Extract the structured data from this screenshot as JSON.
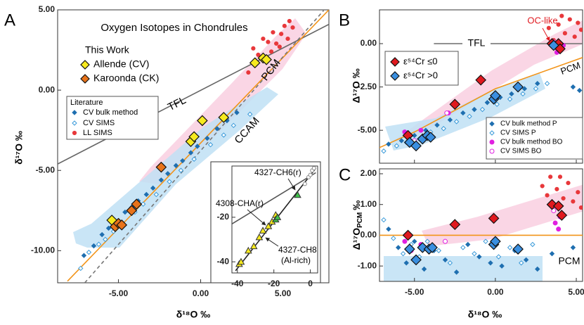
{
  "chart_data": [
    {
      "type": "scatter",
      "panel": "A",
      "title": "Oxygen Isotopes in Chondrules",
      "x_label": "δ¹⁸O ‰",
      "y_label": "δ¹⁷O ‰",
      "legend_titles": [
        "This Work",
        "Literature"
      ],
      "xlim": [
        -8.7,
        7.8
      ],
      "ylim": [
        -12,
        5
      ],
      "xticks": [
        {
          "value": -5,
          "label": "-5.00"
        },
        {
          "value": 0,
          "label": "0.00"
        },
        {
          "value": 5,
          "label": "5.00"
        }
      ],
      "yticks": [
        {
          "value": 5,
          "label": "5.00"
        },
        {
          "value": 0,
          "label": "0.00"
        },
        {
          "value": -5,
          "label": "-5.00"
        },
        {
          "value": -10,
          "label": "-10.00"
        }
      ],
      "lines": [
        {
          "name": "TFL",
          "color": "#666666",
          "x": [
            -8.7,
            7.8
          ],
          "y": [
            -4.6,
            4.1
          ]
        },
        {
          "name": "PCM",
          "color": "#f29419",
          "x": [
            -8.1,
            7.8
          ],
          "y": [
            -11.9,
            5.0
          ]
        },
        {
          "name": "CCAM",
          "color": "#777777",
          "dash": true,
          "x": [
            -7.05,
            7.48
          ],
          "y": [
            -12,
            4.96
          ]
        }
      ],
      "series": [
        {
          "name": "CV bulk method",
          "color": "#1f6fb0",
          "marker": "diamond",
          "size": 3,
          "x": [
            -7.1,
            -6.5,
            -6.0,
            -5.6,
            -5.1,
            -4.6,
            -4.2,
            -3.8,
            -3.3,
            -2.9,
            -2.4,
            -2.0,
            -1.5,
            -1.1,
            -0.6,
            -0.2,
            0.4,
            1.0,
            1.6,
            2.2
          ],
          "values": [
            -10.3,
            -9.7,
            -9.0,
            -8.6,
            -8.2,
            -7.6,
            -7.3,
            -6.9,
            -6.5,
            -6.1,
            -5.6,
            -5.2,
            -4.7,
            -4.4,
            -3.9,
            -3.5,
            -3.0,
            -2.4,
            -1.9,
            -1.4
          ]
        },
        {
          "name": "CV SIMS",
          "color": "#3a9ad9",
          "marker": "diamond-open",
          "size": 3,
          "x": [
            -7.3,
            -6.8,
            -6.2,
            -5.8,
            -5.3,
            -4.8,
            -4.0,
            -3.5,
            -2.7,
            -1.9,
            -1.2,
            -0.4,
            0.6,
            1.4,
            2.0,
            3.0
          ],
          "values": [
            -11.1,
            -10.1,
            -9.6,
            -9.3,
            -8.8,
            -8.3,
            -7.6,
            -7.1,
            -6.5,
            -5.7,
            -5.0,
            -4.3,
            -3.4,
            -2.8,
            -2.2,
            -1.5
          ]
        },
        {
          "name": "LL SIMS",
          "color": "#e8383b",
          "marker": "circle",
          "size": 2.6,
          "x": [
            3.2,
            3.8,
            4.1,
            4.4,
            4.6,
            4.9,
            5.1,
            5.3,
            5.6,
            4.3,
            3.5,
            4.8,
            5.4,
            2.9
          ],
          "values": [
            2.6,
            3.2,
            3.0,
            3.6,
            2.9,
            3.5,
            4.0,
            3.2,
            3.9,
            2.4,
            2.2,
            2.7,
            4.3,
            1.1
          ]
        },
        {
          "name": "Allende (CV)",
          "color": "#f7ea1f",
          "marker": "diamond",
          "size": 7,
          "x": [
            -5.4,
            -0.6,
            -0.4,
            0.1,
            1.4,
            3.3,
            3.8,
            4.0
          ],
          "values": [
            -8.1,
            -3.2,
            -2.9,
            -1.9,
            -1.7,
            1.7,
            2.0,
            1.9
          ]
        },
        {
          "name": "Karoonda (CK)",
          "color": "#e8731a",
          "marker": "diamond",
          "size": 7,
          "x": [
            -5.2,
            -5.0,
            -4.8,
            -4.2,
            -3.9,
            -2.4
          ],
          "values": [
            -8.5,
            -8.3,
            -8.4,
            -7.5,
            -7.1,
            -4.8
          ]
        }
      ]
    },
    {
      "type": "scatter",
      "annotations": [
        "4327-CH6(r)",
        "4308-CHA(r)",
        "4327-CH8",
        "(Al-rich)"
      ],
      "xlim": [
        -43,
        4
      ],
      "ylim": [
        -45,
        3
      ],
      "xticks": [
        -40,
        -20,
        0
      ],
      "yticks": [
        -40,
        -20
      ],
      "lines": [
        {
          "color": "#555555",
          "x": [
            -43,
            3
          ],
          "y": [
            -23,
            0
          ]
        },
        {
          "color": "#222222",
          "x": [
            -41,
            3
          ],
          "y": [
            -44,
            2
          ]
        }
      ],
      "series": [
        {
          "color": "#f7ea1f",
          "marker": "triangle",
          "size": 4.5,
          "x": [
            -39,
            -38,
            -34,
            -31,
            -28,
            -26,
            -23,
            -21,
            -19
          ],
          "values": [
            -41,
            -40,
            -35,
            -33,
            -29,
            -26,
            -24,
            -22,
            -19
          ]
        },
        {
          "color": "#3ec24a",
          "marker": "triangle",
          "size": 4.5,
          "x": [
            -19,
            -18,
            -7
          ],
          "values": [
            -21,
            -20,
            -10
          ]
        },
        {
          "color": "#888888",
          "marker": "circle-open",
          "size": 2.5,
          "x": [
            -3,
            -1,
            0,
            1,
            2
          ],
          "values": [
            -5,
            -2,
            -1,
            1,
            2
          ]
        }
      ]
    },
    {
      "type": "scatter",
      "panel": "B",
      "y_label": "Δ¹⁷O ‰",
      "annotations": [
        "OC-like"
      ],
      "xlim": [
        -7.16,
        5.39
      ],
      "ylim": [
        -6.9,
        1.95
      ],
      "xticks": [
        -5,
        0,
        5
      ],
      "yticks": [
        {
          "value": 0,
          "label": "0.00"
        },
        {
          "value": -2.5,
          "label": "-2.50"
        },
        {
          "value": -5,
          "label": "-5.00"
        }
      ],
      "lines": [
        {
          "name": "TFL",
          "color": "#777777",
          "x": [
            -3.8,
            5.39
          ],
          "y": [
            0,
            0
          ]
        },
        {
          "name": "PCM",
          "color": "#f29419",
          "x": [
            -7.16,
            -5,
            0,
            5.39
          ],
          "y": [
            -6.0,
            -5.1,
            -2.6,
            -0.8
          ]
        }
      ],
      "series": [
        {
          "name": "CV bulk method P",
          "color": "#1f6fb0",
          "marker": "diamond",
          "size": 3,
          "x": [
            -6.6,
            -5.8,
            -5.0,
            -4.3,
            -3.6,
            -2.8,
            -2.0,
            -1.3,
            -0.5,
            0.3,
            1.0,
            1.8,
            2.6,
            4.8,
            5.2
          ],
          "values": [
            -5.8,
            -5.6,
            -5.3,
            -5.0,
            -4.7,
            -4.4,
            -4.0,
            -3.8,
            -3.4,
            -3.1,
            -2.9,
            -2.6,
            -2.3,
            -2.5,
            -2.7
          ]
        },
        {
          "name": "CV SIMS P",
          "color": "#3a9ad9",
          "marker": "diamond-open",
          "size": 3,
          "x": [
            -6.9,
            -6.1,
            -5.5,
            -4.7,
            -4.0,
            -3.2,
            -2.4,
            -1.6,
            -0.8,
            0.1,
            0.9,
            1.7,
            2.5,
            3.2
          ],
          "values": [
            -6.2,
            -5.9,
            -5.7,
            -5.5,
            -5.1,
            -4.9,
            -4.5,
            -4.2,
            -3.8,
            -3.5,
            -3.2,
            -2.9,
            -2.6,
            -2.3
          ]
        },
        {
          "name": "CV bulk method BO",
          "color": "#e020e0",
          "marker": "circle",
          "size": 3,
          "x": [
            -5.6,
            -4.6,
            -2.9,
            3.8,
            4.0,
            4.2
          ],
          "values": [
            -5.1,
            -5.0,
            -4.0,
            -0.5,
            -0.3,
            -0.1
          ]
        },
        {
          "name": "CV SIMS BO",
          "color": "#e020e0",
          "marker": "circle-open",
          "size": 3,
          "x": [
            -5.0,
            -3.0,
            3.6
          ],
          "values": [
            -5.6,
            -4.0,
            0.1
          ]
        },
        {
          "color": "#e8383b",
          "marker": "circle",
          "size": 2.6,
          "x": [
            3.3,
            3.9,
            4.3,
            4.6,
            4.9,
            5.1,
            5.3,
            4.1,
            3.6
          ],
          "values": [
            0.9,
            1.1,
            0.6,
            1.4,
            0.4,
            1.2,
            0.8,
            1.6,
            0.2
          ]
        },
        {
          "name": "ε⁵⁴Cr ≤0",
          "color": "#e0191f",
          "marker": "diamond",
          "size": 7,
          "x": [
            -5.4,
            -2.5,
            -0.9,
            3.5,
            3.9,
            4.0
          ],
          "values": [
            -5.3,
            -3.5,
            -2.1,
            0.0,
            0.0,
            -0.3
          ],
          "errors": [
            0.2,
            0.2,
            0.2,
            0.2,
            0.2,
            0.2
          ]
        },
        {
          "name": "ε⁵⁴Cr >0",
          "color": "#3a8fe0",
          "marker": "diamond",
          "size": 7,
          "x": [
            -5.3,
            -4.9,
            -4.5,
            -4.2,
            -4.0,
            -0.1,
            0.0,
            1.4,
            3.6
          ],
          "values": [
            -5.7,
            -5.9,
            -5.5,
            -5.3,
            -5.4,
            -3.2,
            -3.0,
            -2.5,
            -0.1
          ],
          "errors": [
            0.25,
            0.25,
            0.25,
            0.25,
            0.25,
            0.25,
            0.25,
            0.25,
            0.25
          ]
        }
      ]
    },
    {
      "type": "scatter",
      "panel": "C",
      "x_label": "δ¹⁸O ‰",
      "y_label": [
        "Δ¹⁷O",
        "PCM",
        "‰"
      ],
      "xlim": [
        -7.16,
        5.39
      ],
      "ylim": [
        -1.5,
        2.16
      ],
      "xticks": [
        {
          "value": -5,
          "label": "-5.00"
        },
        {
          "value": 0,
          "label": "0.00"
        },
        {
          "value": 5,
          "label": "5.00"
        }
      ],
      "yticks": [
        {
          "value": 2,
          "label": "2.00"
        },
        {
          "value": 1,
          "label": "1.00"
        },
        {
          "value": 0,
          "label": "0.00"
        },
        {
          "value": -1,
          "label": "-1.00"
        }
      ],
      "lines": [
        {
          "name": "PCM",
          "color": "#f29419",
          "x": [
            -7.16,
            5.39
          ],
          "y": [
            0,
            0
          ]
        }
      ],
      "series": [
        {
          "color": "#1f6fb0",
          "marker": "diamond",
          "size": 3,
          "x": [
            -6.6,
            -6.0,
            -5.5,
            -5.0,
            -4.4,
            -3.8,
            -3.1,
            -2.4,
            -1.7,
            -1.0,
            -0.3,
            0.4,
            1.2,
            1.9,
            2.6,
            3.5,
            4.8
          ],
          "values": [
            0.2,
            -0.4,
            -0.9,
            -0.2,
            -1.1,
            -0.5,
            -0.8,
            -1.2,
            -0.3,
            -0.7,
            -0.9,
            -1.0,
            -0.5,
            -0.8,
            -1.1,
            -0.6,
            -0.4
          ]
        },
        {
          "color": "#3a9ad9",
          "marker": "diamond-open",
          "size": 3,
          "x": [
            -6.9,
            -6.3,
            -5.7,
            -5.2,
            -4.7,
            -4.2,
            -3.5,
            -2.8,
            -2.0,
            -1.3,
            -0.6,
            0.2,
            0.9,
            1.6,
            2.3
          ],
          "values": [
            0.5,
            -0.1,
            -0.6,
            -0.3,
            -0.7,
            -0.2,
            -0.5,
            -0.9,
            -0.4,
            -0.6,
            -0.2,
            -0.7,
            -0.4,
            -0.9,
            -0.3
          ]
        },
        {
          "color": "#e020e0",
          "marker": "circle",
          "size": 3,
          "x": [
            -5.6,
            -4.6,
            3.7,
            3.9,
            4.0
          ],
          "values": [
            -0.2,
            -0.3,
            0.4,
            0.2,
            0.6
          ]
        },
        {
          "color": "#e020e0",
          "marker": "circle-open",
          "size": 3,
          "x": [
            -5.2,
            -3.1,
            3.6
          ],
          "values": [
            -0.5,
            -0.2,
            0.8
          ]
        },
        {
          "color": "#e8383b",
          "marker": "circle",
          "size": 2.6,
          "x": [
            2.9,
            3.4,
            3.8,
            4.2,
            4.5,
            4.8,
            5.1,
            5.3,
            4.0,
            3.2
          ],
          "values": [
            1.6,
            1.9,
            1.5,
            1.2,
            1.7,
            1.1,
            1.4,
            0.9,
            1.9,
            1.3
          ]
        },
        {
          "color": "#e0191f",
          "marker": "diamond",
          "size": 7,
          "x": [
            -5.4,
            -2.5,
            -0.1,
            3.5,
            3.9,
            4.1
          ],
          "values": [
            0.0,
            0.35,
            0.55,
            1.0,
            0.95,
            0.65
          ],
          "errors": [
            0.15,
            0.15,
            0.15,
            0.15,
            0.15,
            0.15
          ]
        },
        {
          "color": "#3a8fe0",
          "marker": "diamond",
          "size": 7,
          "x": [
            -5.3,
            -4.9,
            -4.5,
            -4.1,
            -3.9,
            -0.1,
            0.0,
            1.4
          ],
          "values": [
            -0.45,
            -0.8,
            -0.4,
            -0.45,
            -0.4,
            -0.3,
            -0.2,
            -0.45
          ],
          "errors": [
            0.15,
            0.15,
            0.15,
            0.15,
            0.15,
            0.15,
            0.15,
            0.15
          ]
        }
      ]
    }
  ]
}
